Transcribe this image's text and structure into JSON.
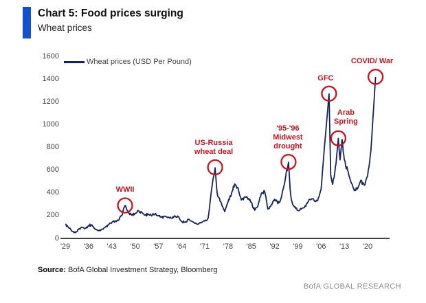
{
  "header": {
    "title": "Chart 5: Food prices surging",
    "subtitle": "Wheat prices"
  },
  "legend": {
    "label": "Wheat prices (USD Per Pound)"
  },
  "footer": {
    "source_label": "Source:",
    "source_text": " BofA Global Investment Strategy, Bloomberg",
    "brand": "BofA GLOBAL RESEARCH"
  },
  "colors": {
    "accent_blue": "#1450d2",
    "line_navy": "#14235a",
    "annotation_red": "#c8141e",
    "axis_text": "#3f3f3f",
    "axis_line": "#3f3f3f",
    "brand_gray": "#8c8c8c"
  },
  "chart_data": {
    "type": "line",
    "title": "Wheat prices",
    "series_name": "Wheat prices (USD Per Pound)",
    "xlabel": "",
    "ylabel": "",
    "xlim": [
      1929,
      2023
    ],
    "ylim": [
      0,
      1600
    ],
    "grid": false,
    "legend_position": "top-left",
    "yticks": [
      0,
      200,
      400,
      600,
      800,
      1000,
      1200,
      1400,
      1600
    ],
    "xtick_years": [
      1929,
      1936,
      1943,
      1950,
      1957,
      1964,
      1971,
      1978,
      1985,
      1992,
      1999,
      2006,
      2013,
      2020
    ],
    "xtick_labels": [
      "'29",
      "'36",
      "'43",
      "'50",
      "'57",
      "'64",
      "'71",
      "'78",
      "'85",
      "'92",
      "'99",
      "'06",
      "'13",
      "'20"
    ],
    "points": [
      [
        1929,
        125
      ],
      [
        1930,
        95
      ],
      [
        1931,
        62
      ],
      [
        1932,
        50
      ],
      [
        1933,
        80
      ],
      [
        1934,
        98
      ],
      [
        1935,
        88
      ],
      [
        1936,
        112
      ],
      [
        1937,
        120
      ],
      [
        1938,
        80
      ],
      [
        1939,
        70
      ],
      [
        1940,
        82
      ],
      [
        1941,
        98
      ],
      [
        1942,
        118
      ],
      [
        1943,
        140
      ],
      [
        1944,
        150
      ],
      [
        1945,
        158
      ],
      [
        1946,
        200
      ],
      [
        1947,
        290
      ],
      [
        1947.7,
        245
      ],
      [
        1948,
        225
      ],
      [
        1949,
        205
      ],
      [
        1950,
        218
      ],
      [
        1951,
        245
      ],
      [
        1952,
        228
      ],
      [
        1953,
        205
      ],
      [
        1954,
        214
      ],
      [
        1955,
        198
      ],
      [
        1956,
        216
      ],
      [
        1957,
        200
      ],
      [
        1958,
        186
      ],
      [
        1959,
        196
      ],
      [
        1960,
        188
      ],
      [
        1961,
        178
      ],
      [
        1962,
        198
      ],
      [
        1963,
        192
      ],
      [
        1964,
        148
      ],
      [
        1965,
        142
      ],
      [
        1966,
        168
      ],
      [
        1967,
        152
      ],
      [
        1968,
        132
      ],
      [
        1969,
        126
      ],
      [
        1970,
        142
      ],
      [
        1971,
        152
      ],
      [
        1972,
        178
      ],
      [
        1973,
        420
      ],
      [
        1974.1,
        620
      ],
      [
        1974.6,
        430
      ],
      [
        1975,
        365
      ],
      [
        1976,
        310
      ],
      [
        1977,
        235
      ],
      [
        1978,
        322
      ],
      [
        1979,
        390
      ],
      [
        1980,
        478
      ],
      [
        1981,
        445
      ],
      [
        1982,
        338
      ],
      [
        1983,
        365
      ],
      [
        1984,
        345
      ],
      [
        1985,
        318
      ],
      [
        1986,
        248
      ],
      [
        1987,
        288
      ],
      [
        1988,
        395
      ],
      [
        1989,
        415
      ],
      [
        1990,
        258
      ],
      [
        1991,
        295
      ],
      [
        1992,
        345
      ],
      [
        1993,
        305
      ],
      [
        1994,
        358
      ],
      [
        1995,
        480
      ],
      [
        1996.2,
        670
      ],
      [
        1996.7,
        430
      ],
      [
        1997,
        348
      ],
      [
        1998,
        275
      ],
      [
        1999,
        245
      ],
      [
        2000,
        258
      ],
      [
        2001,
        272
      ],
      [
        2002,
        318
      ],
      [
        2003,
        342
      ],
      [
        2004,
        328
      ],
      [
        2005,
        335
      ],
      [
        2006,
        430
      ],
      [
        2007,
        800
      ],
      [
        2008.4,
        1270
      ],
      [
        2008.9,
        560
      ],
      [
        2009.5,
        475
      ],
      [
        2010.5,
        660
      ],
      [
        2011.2,
        880
      ],
      [
        2011.7,
        690
      ],
      [
        2012.3,
        870
      ],
      [
        2013,
        690
      ],
      [
        2014,
        598
      ],
      [
        2015,
        495
      ],
      [
        2016,
        420
      ],
      [
        2017,
        438
      ],
      [
        2018,
        512
      ],
      [
        2019,
        468
      ],
      [
        2020,
        548
      ],
      [
        2021,
        770
      ],
      [
        2022.4,
        1420
      ]
    ],
    "annotations": [
      {
        "id": "wwii",
        "lines": [
          "WWII"
        ],
        "year": 1947.0,
        "value": 290,
        "text_dx": 0,
        "text_gap": 5
      },
      {
        "id": "us-russia-wheat-deal",
        "lines": [
          "US-Russia",
          "wheat deal"
        ],
        "year": 1974.1,
        "value": 625,
        "text_dx": -2,
        "text_gap": 5
      },
      {
        "id": "midwest-drought",
        "lines": [
          "'95-'96",
          "Midwest",
          "drought"
        ],
        "year": 1996.2,
        "value": 672,
        "text_dx": -1,
        "text_gap": 5
      },
      {
        "id": "gfc",
        "lines": [
          "GFC"
        ],
        "year": 2008.4,
        "value": 1272,
        "text_dx": -5,
        "text_gap": 5
      },
      {
        "id": "arab-spring",
        "lines": [
          "Arab",
          "Spring"
        ],
        "year": 2011.2,
        "value": 880,
        "text_dx": 11,
        "text_gap": 7
      },
      {
        "id": "covid-war",
        "lines": [
          "COVID/ War"
        ],
        "year": 2022.4,
        "value": 1420,
        "text_dx": -5,
        "text_gap": 5
      }
    ]
  }
}
